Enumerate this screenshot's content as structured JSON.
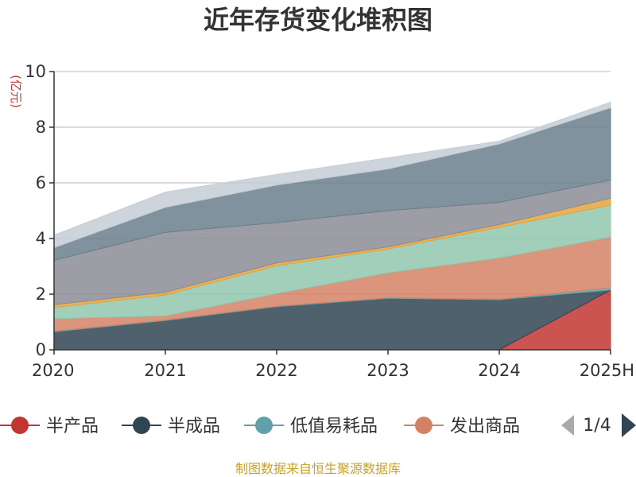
{
  "chart_data": {
    "type": "area",
    "stacked": true,
    "title": "近年存货变化堆积图",
    "ylabel": "(亿元)",
    "x": [
      "2020",
      "2021",
      "2022",
      "2023",
      "2024",
      "2025H"
    ],
    "ylim": [
      0,
      10
    ],
    "yticks": [
      0,
      2,
      4,
      6,
      8,
      10
    ],
    "grid": true,
    "legend_position": "bottom",
    "source": "制图数据来自恒生聚源数据库",
    "pager": "1/4",
    "series": [
      {
        "name": "半产品",
        "color": "#c23531",
        "values": [
          0,
          0,
          0,
          0,
          0,
          2.15
        ],
        "in_legend": true
      },
      {
        "name": "半成品",
        "color": "#2f4554",
        "values": [
          0.65,
          1.05,
          1.55,
          1.85,
          1.8,
          0
        ],
        "in_legend": true
      },
      {
        "name": "低值易耗品",
        "color": "#61a0a8",
        "values": [
          0.02,
          0.02,
          0.02,
          0.02,
          0.02,
          0.08
        ],
        "in_legend": true
      },
      {
        "name": "发出商品",
        "color": "#d48265",
        "values": [
          0.45,
          0.15,
          0.45,
          0.9,
          1.48,
          1.82
        ],
        "in_legend": true
      },
      {
        "name": "",
        "color": "#91c7ae",
        "values": [
          0.4,
          0.75,
          1.0,
          0.85,
          1.1,
          1.15
        ],
        "in_legend": false
      },
      {
        "name": "",
        "color": "#e5a33b",
        "values": [
          0.1,
          0.1,
          0.1,
          0.08,
          0.1,
          0.25
        ],
        "in_legend": false
      },
      {
        "name": "",
        "color": "#8c8c96",
        "values": [
          1.6,
          2.15,
          1.45,
          1.3,
          0.8,
          0.65
        ],
        "in_legend": false
      },
      {
        "name": "",
        "color": "#6a7f8c",
        "values": [
          0.45,
          0.9,
          1.35,
          1.5,
          2.1,
          2.6
        ],
        "in_legend": false
      },
      {
        "name": "",
        "color": "#c5ccd6",
        "values": [
          0.45,
          0.55,
          0.38,
          0.4,
          0.1,
          0.2
        ],
        "in_legend": false
      }
    ]
  }
}
